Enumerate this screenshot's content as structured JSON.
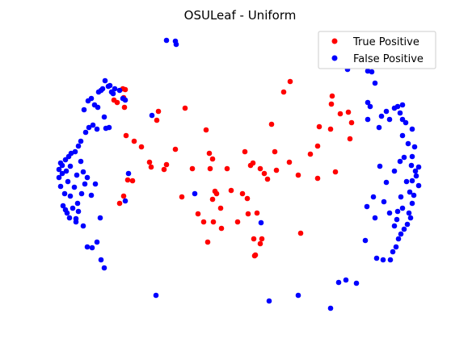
{
  "chart_data": {
    "type": "scatter",
    "title": "OSULeaf - Uniform",
    "xlabel": "",
    "ylabel": "",
    "axes_visible": false,
    "grid": false,
    "legend_position": "top-right",
    "series": [
      {
        "name": "True Positive",
        "color": "#ff0000",
        "points": [
          [
            359,
            101
          ],
          [
            351,
            114
          ],
          [
            411,
            119
          ],
          [
            410,
            129
          ],
          [
            421,
            141
          ],
          [
            431,
            139
          ],
          [
            435,
            152
          ],
          [
            433,
            172
          ],
          [
            409,
            160
          ],
          [
            395,
            157
          ],
          [
            393,
            181
          ],
          [
            384,
            191
          ],
          [
            415,
            213
          ],
          [
            393,
            221
          ],
          [
            369,
            217
          ],
          [
            358,
            201
          ],
          [
            342,
            211
          ],
          [
            340,
            188
          ],
          [
            336,
            154
          ],
          [
            331,
            222
          ],
          [
            327,
            215
          ],
          [
            322,
            209
          ],
          [
            313,
            202
          ],
          [
            310,
            205
          ],
          [
            303,
            188
          ],
          [
            281,
            209
          ],
          [
            286,
            236
          ],
          [
            266,
            237
          ],
          [
            268,
            240
          ],
          [
            263,
            247
          ],
          [
            259,
            190
          ],
          [
            263,
            197
          ],
          [
            260,
            209
          ],
          [
            255,
            161
          ],
          [
            238,
            209
          ],
          [
            229,
            134
          ],
          [
            217,
            185
          ],
          [
            206,
            204
          ],
          [
            203,
            210
          ],
          [
            196,
            138
          ],
          [
            194,
            149
          ],
          [
            185,
            201
          ],
          [
            187,
            207
          ],
          [
            175,
            182
          ],
          [
            166,
            175
          ],
          [
            156,
            168
          ],
          [
            164,
            224
          ],
          [
            158,
            223
          ],
          [
            153,
            243
          ],
          [
            148,
            252
          ],
          [
            145,
            127
          ],
          [
            141,
            124
          ],
          [
            152,
            110
          ],
          [
            155,
            111
          ],
          [
            153,
            121
          ],
          [
            154,
            133
          ],
          [
            225,
            244
          ],
          [
            245,
            265
          ],
          [
            252,
            275
          ],
          [
            264,
            275
          ],
          [
            274,
            283
          ],
          [
            273,
            258
          ],
          [
            257,
            300
          ],
          [
            294,
            275
          ],
          [
            300,
            240
          ],
          [
            306,
            246
          ],
          [
            307,
            265
          ],
          [
            318,
            264
          ],
          [
            314,
            296
          ],
          [
            324,
            296
          ],
          [
            322,
            302
          ],
          [
            316,
            316
          ],
          [
            315,
            317
          ],
          [
            372,
            289
          ]
        ]
      },
      {
        "name": "False Positive",
        "color": "#0000ff",
        "points": [
          [
            206,
            50
          ],
          [
            217,
            51
          ],
          [
            218,
            55
          ],
          [
            188,
            143
          ],
          [
            159,
            215
          ],
          [
            155,
            249
          ],
          [
            124,
            270
          ],
          [
            129,
            332
          ],
          [
            125,
            322
          ],
          [
            120,
            300
          ],
          [
            114,
            307
          ],
          [
            108,
            306
          ],
          [
            103,
            280
          ],
          [
            94,
            275
          ],
          [
            86,
            270
          ],
          [
            83,
            264
          ],
          [
            81,
            260
          ],
          [
            78,
            255
          ],
          [
            75,
            231
          ],
          [
            73,
            220
          ],
          [
            73,
            210
          ],
          [
            75,
            202
          ],
          [
            77,
            205
          ],
          [
            81,
            198
          ],
          [
            85,
            194
          ],
          [
            88,
            190
          ],
          [
            93,
            188
          ],
          [
            97,
            181
          ],
          [
            100,
            175
          ],
          [
            106,
            164
          ],
          [
            104,
            136
          ],
          [
            109,
            125
          ],
          [
            113,
            122
          ],
          [
            117,
            130
          ],
          [
            121,
            133
          ],
          [
            122,
            114
          ],
          [
            125,
            112
          ],
          [
            127,
            110
          ],
          [
            130,
            100
          ],
          [
            134,
            107
          ],
          [
            136,
            106
          ],
          [
            138,
            114
          ],
          [
            140,
            116
          ],
          [
            142,
            110
          ],
          [
            148,
            112
          ],
          [
            152,
            122
          ],
          [
            155,
            124
          ],
          [
            120,
            160
          ],
          [
            115,
            155
          ],
          [
            110,
            158
          ],
          [
            129,
            145
          ],
          [
            135,
            158
          ],
          [
            131,
            159
          ],
          [
            100,
            200
          ],
          [
            92,
            232
          ],
          [
            87,
            243
          ],
          [
            90,
            258
          ],
          [
            96,
            252
          ],
          [
            101,
            240
          ],
          [
            105,
            228
          ],
          [
            108,
            220
          ],
          [
            84,
            225
          ],
          [
            80,
            240
          ],
          [
            77,
            215
          ],
          [
            82,
            212
          ],
          [
            87,
            206
          ],
          [
            95,
            217
          ],
          [
            103,
            213
          ],
          [
            113,
            242
          ],
          [
            118,
            228
          ],
          [
            97,
            262
          ],
          [
            94,
            271
          ],
          [
            241,
            240
          ],
          [
            323,
            276
          ],
          [
            333,
            373
          ],
          [
            369,
            366
          ],
          [
            409,
            382
          ],
          [
            419,
            350
          ],
          [
            428,
            347
          ],
          [
            441,
            351
          ],
          [
            193,
            366
          ],
          [
            430,
            86
          ],
          [
            455,
            88
          ],
          [
            460,
            89
          ],
          [
            464,
            103
          ],
          [
            455,
            127
          ],
          [
            458,
            132
          ],
          [
            455,
            148
          ],
          [
            472,
            144
          ],
          [
            469,
            158
          ],
          [
            478,
            138
          ],
          [
            482,
            148
          ],
          [
            488,
            134
          ],
          [
            492,
            132
          ],
          [
            498,
            130
          ],
          [
            495,
            140
          ],
          [
            498,
            148
          ],
          [
            502,
            152
          ],
          [
            510,
            160
          ],
          [
            505,
            178
          ],
          [
            513,
            182
          ],
          [
            510,
            194
          ],
          [
            509,
            205
          ],
          [
            514,
            212
          ],
          [
            518,
            207
          ],
          [
            515,
            218
          ],
          [
            510,
            224
          ],
          [
            518,
            230
          ],
          [
            512,
            242
          ],
          [
            510,
            252
          ],
          [
            506,
            264
          ],
          [
            508,
            270
          ],
          [
            504,
            278
          ],
          [
            500,
            284
          ],
          [
            496,
            290
          ],
          [
            493,
            296
          ],
          [
            490,
            306
          ],
          [
            486,
            312
          ],
          [
            483,
            322
          ],
          [
            470,
            206
          ],
          [
            488,
            212
          ],
          [
            478,
            226
          ],
          [
            462,
            244
          ],
          [
            454,
            256
          ],
          [
            475,
            250
          ],
          [
            464,
            270
          ],
          [
            482,
            264
          ],
          [
            491,
            272
          ],
          [
            452,
            298
          ],
          [
            466,
            320
          ],
          [
            474,
            322
          ],
          [
            500,
            195
          ],
          [
            495,
            200
          ],
          [
            503,
            225
          ],
          [
            507,
            238
          ],
          [
            496,
            244
          ],
          [
            498,
            258
          ],
          [
            492,
            262
          ],
          [
            488,
            280
          ],
          [
            498,
            168
          ]
        ]
      }
    ]
  }
}
